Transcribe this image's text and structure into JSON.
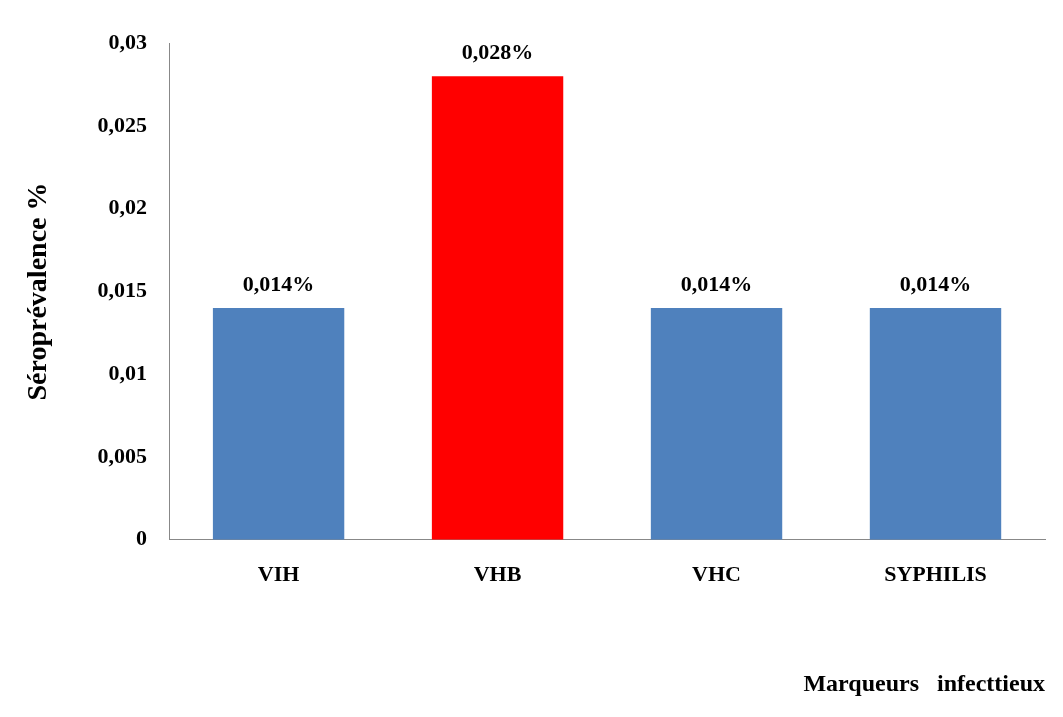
{
  "chart_data": {
    "type": "bar",
    "xlabel": "Marqueurs   infecttieux",
    "ylabel": "Séroprévalence %",
    "categories": [
      "VIH",
      "VHB",
      "VHC",
      "SYPHILIS"
    ],
    "values": [
      0.014,
      0.028,
      0.014,
      0.014
    ],
    "colors": [
      "#4f81bd",
      "#ff0000",
      "#4f81bd",
      "#4f81bd"
    ],
    "value_labels": [
      "0,014%",
      "0,028%",
      "0,014%",
      "0,014%"
    ],
    "ylim": [
      0,
      0.03
    ],
    "yticks": [
      {
        "value": 0,
        "label": "0"
      },
      {
        "value": 0.005,
        "label": "0,005"
      },
      {
        "value": 0.01,
        "label": "0,01"
      },
      {
        "value": 0.015,
        "label": "0,015"
      },
      {
        "value": 0.02,
        "label": "0,02"
      },
      {
        "value": 0.025,
        "label": "0,025"
      },
      {
        "value": 0.03,
        "label": "0,03"
      }
    ],
    "grid": false,
    "legend": false
  }
}
